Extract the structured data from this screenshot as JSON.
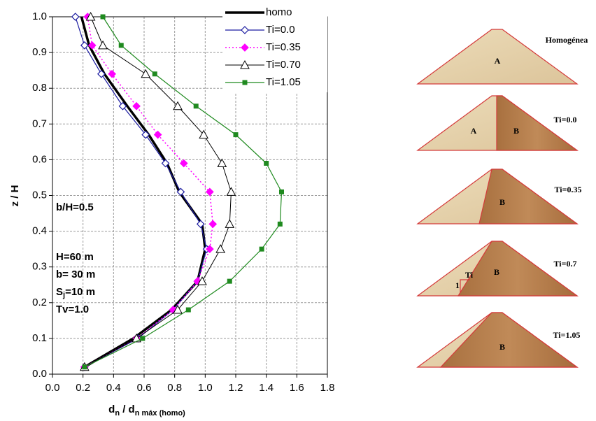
{
  "chart_data": {
    "type": "line",
    "x_label": [
      "d",
      "n",
      " / d",
      "n máx (homo)"
    ],
    "y_label": "z / H",
    "xlim": [
      0,
      1.8
    ],
    "xticks": [
      {
        "value": 0,
        "label": "0.0"
      },
      0.2,
      0.4,
      0.6,
      0.8,
      {
        "value": 1,
        "label": "1.0"
      },
      1.2,
      1.4,
      1.6,
      1.8
    ],
    "ylim": [
      0,
      1
    ],
    "yticks": [
      {
        "value": 0,
        "label": "0.0"
      },
      0.1,
      0.2,
      0.3,
      0.4,
      0.5,
      0.6,
      0.7,
      0.8,
      0.9,
      {
        "value": 1,
        "label": "1.0"
      }
    ],
    "grid": true,
    "legend": "top-right",
    "series": [
      {
        "name": "homo",
        "color": "#000000",
        "marker": "none",
        "line_style": "solid",
        "line_width": 3.5,
        "x": [
          0.19,
          0.24,
          0.34,
          0.49,
          0.63,
          0.75,
          0.83,
          0.98,
          1.0,
          0.95,
          0.78,
          0.53,
          0.21
        ],
        "values": [
          1.0,
          0.92,
          0.84,
          0.75,
          0.67,
          0.59,
          0.51,
          0.42,
          0.35,
          0.26,
          0.18,
          0.1,
          0.02
        ]
      },
      {
        "name": "Ti=0.0",
        "color": "#1a1aa0",
        "marker": "diamond-open",
        "line_style": "solid",
        "line_width": 1.2,
        "x": [
          0.15,
          0.21,
          0.32,
          0.46,
          0.61,
          0.74,
          0.84,
          0.97,
          1.01,
          0.95,
          0.79,
          0.56,
          0.21
        ],
        "values": [
          1.0,
          0.92,
          0.84,
          0.75,
          0.67,
          0.59,
          0.51,
          0.42,
          0.35,
          0.26,
          0.18,
          0.1,
          0.02
        ]
      },
      {
        "name": "Ti=0.35",
        "color": "#ff00ff",
        "marker": "diamond",
        "line_style": "dotted",
        "line_width": 1.5,
        "x": [
          0.23,
          0.26,
          0.39,
          0.55,
          0.69,
          0.86,
          1.03,
          1.05,
          1.03,
          0.95,
          0.79,
          0.55,
          0.21
        ],
        "values": [
          1.0,
          0.92,
          0.84,
          0.75,
          0.67,
          0.59,
          0.51,
          0.42,
          0.35,
          0.26,
          0.18,
          0.1,
          0.02
        ]
      },
      {
        "name": "Ti=0.70",
        "color": "#000000",
        "marker": "triangle-open",
        "line_style": "solid",
        "line_width": 1,
        "x": [
          0.25,
          0.33,
          0.61,
          0.82,
          0.99,
          1.11,
          1.17,
          1.16,
          1.1,
          0.98,
          0.82,
          0.55,
          0.21
        ],
        "values": [
          1.0,
          0.92,
          0.84,
          0.75,
          0.67,
          0.59,
          0.51,
          0.42,
          0.35,
          0.26,
          0.18,
          0.1,
          0.02
        ]
      },
      {
        "name": "Ti=1.05",
        "color": "#1f8a1f",
        "marker": "square",
        "line_style": "solid",
        "line_width": 1.2,
        "x": [
          0.33,
          0.45,
          0.67,
          0.94,
          1.2,
          1.4,
          1.5,
          1.49,
          1.37,
          1.16,
          0.89,
          0.59,
          0.21
        ],
        "values": [
          1.0,
          0.92,
          0.84,
          0.75,
          0.67,
          0.59,
          0.51,
          0.42,
          0.35,
          0.26,
          0.18,
          0.1,
          0.02
        ]
      }
    ],
    "annotations": {
      "ratio": "b/H=0.5",
      "height": "H=60 m",
      "width": "b= 30 m",
      "sj": [
        "S",
        "j",
        "=10 m"
      ],
      "tv": "Tv=1.0"
    }
  },
  "diagrams": [
    {
      "label": "Homogénea",
      "zones": [
        "A"
      ]
    },
    {
      "label": "Ti=0.0",
      "zones": [
        "A",
        "B"
      ]
    },
    {
      "label": "Ti=0.35",
      "zones": [
        "B"
      ]
    },
    {
      "label": "Ti=0.7",
      "zones": [
        "B"
      ],
      "slope": [
        "Ti",
        "1"
      ]
    },
    {
      "label": "Ti=1.05",
      "zones": [
        "B"
      ]
    }
  ]
}
